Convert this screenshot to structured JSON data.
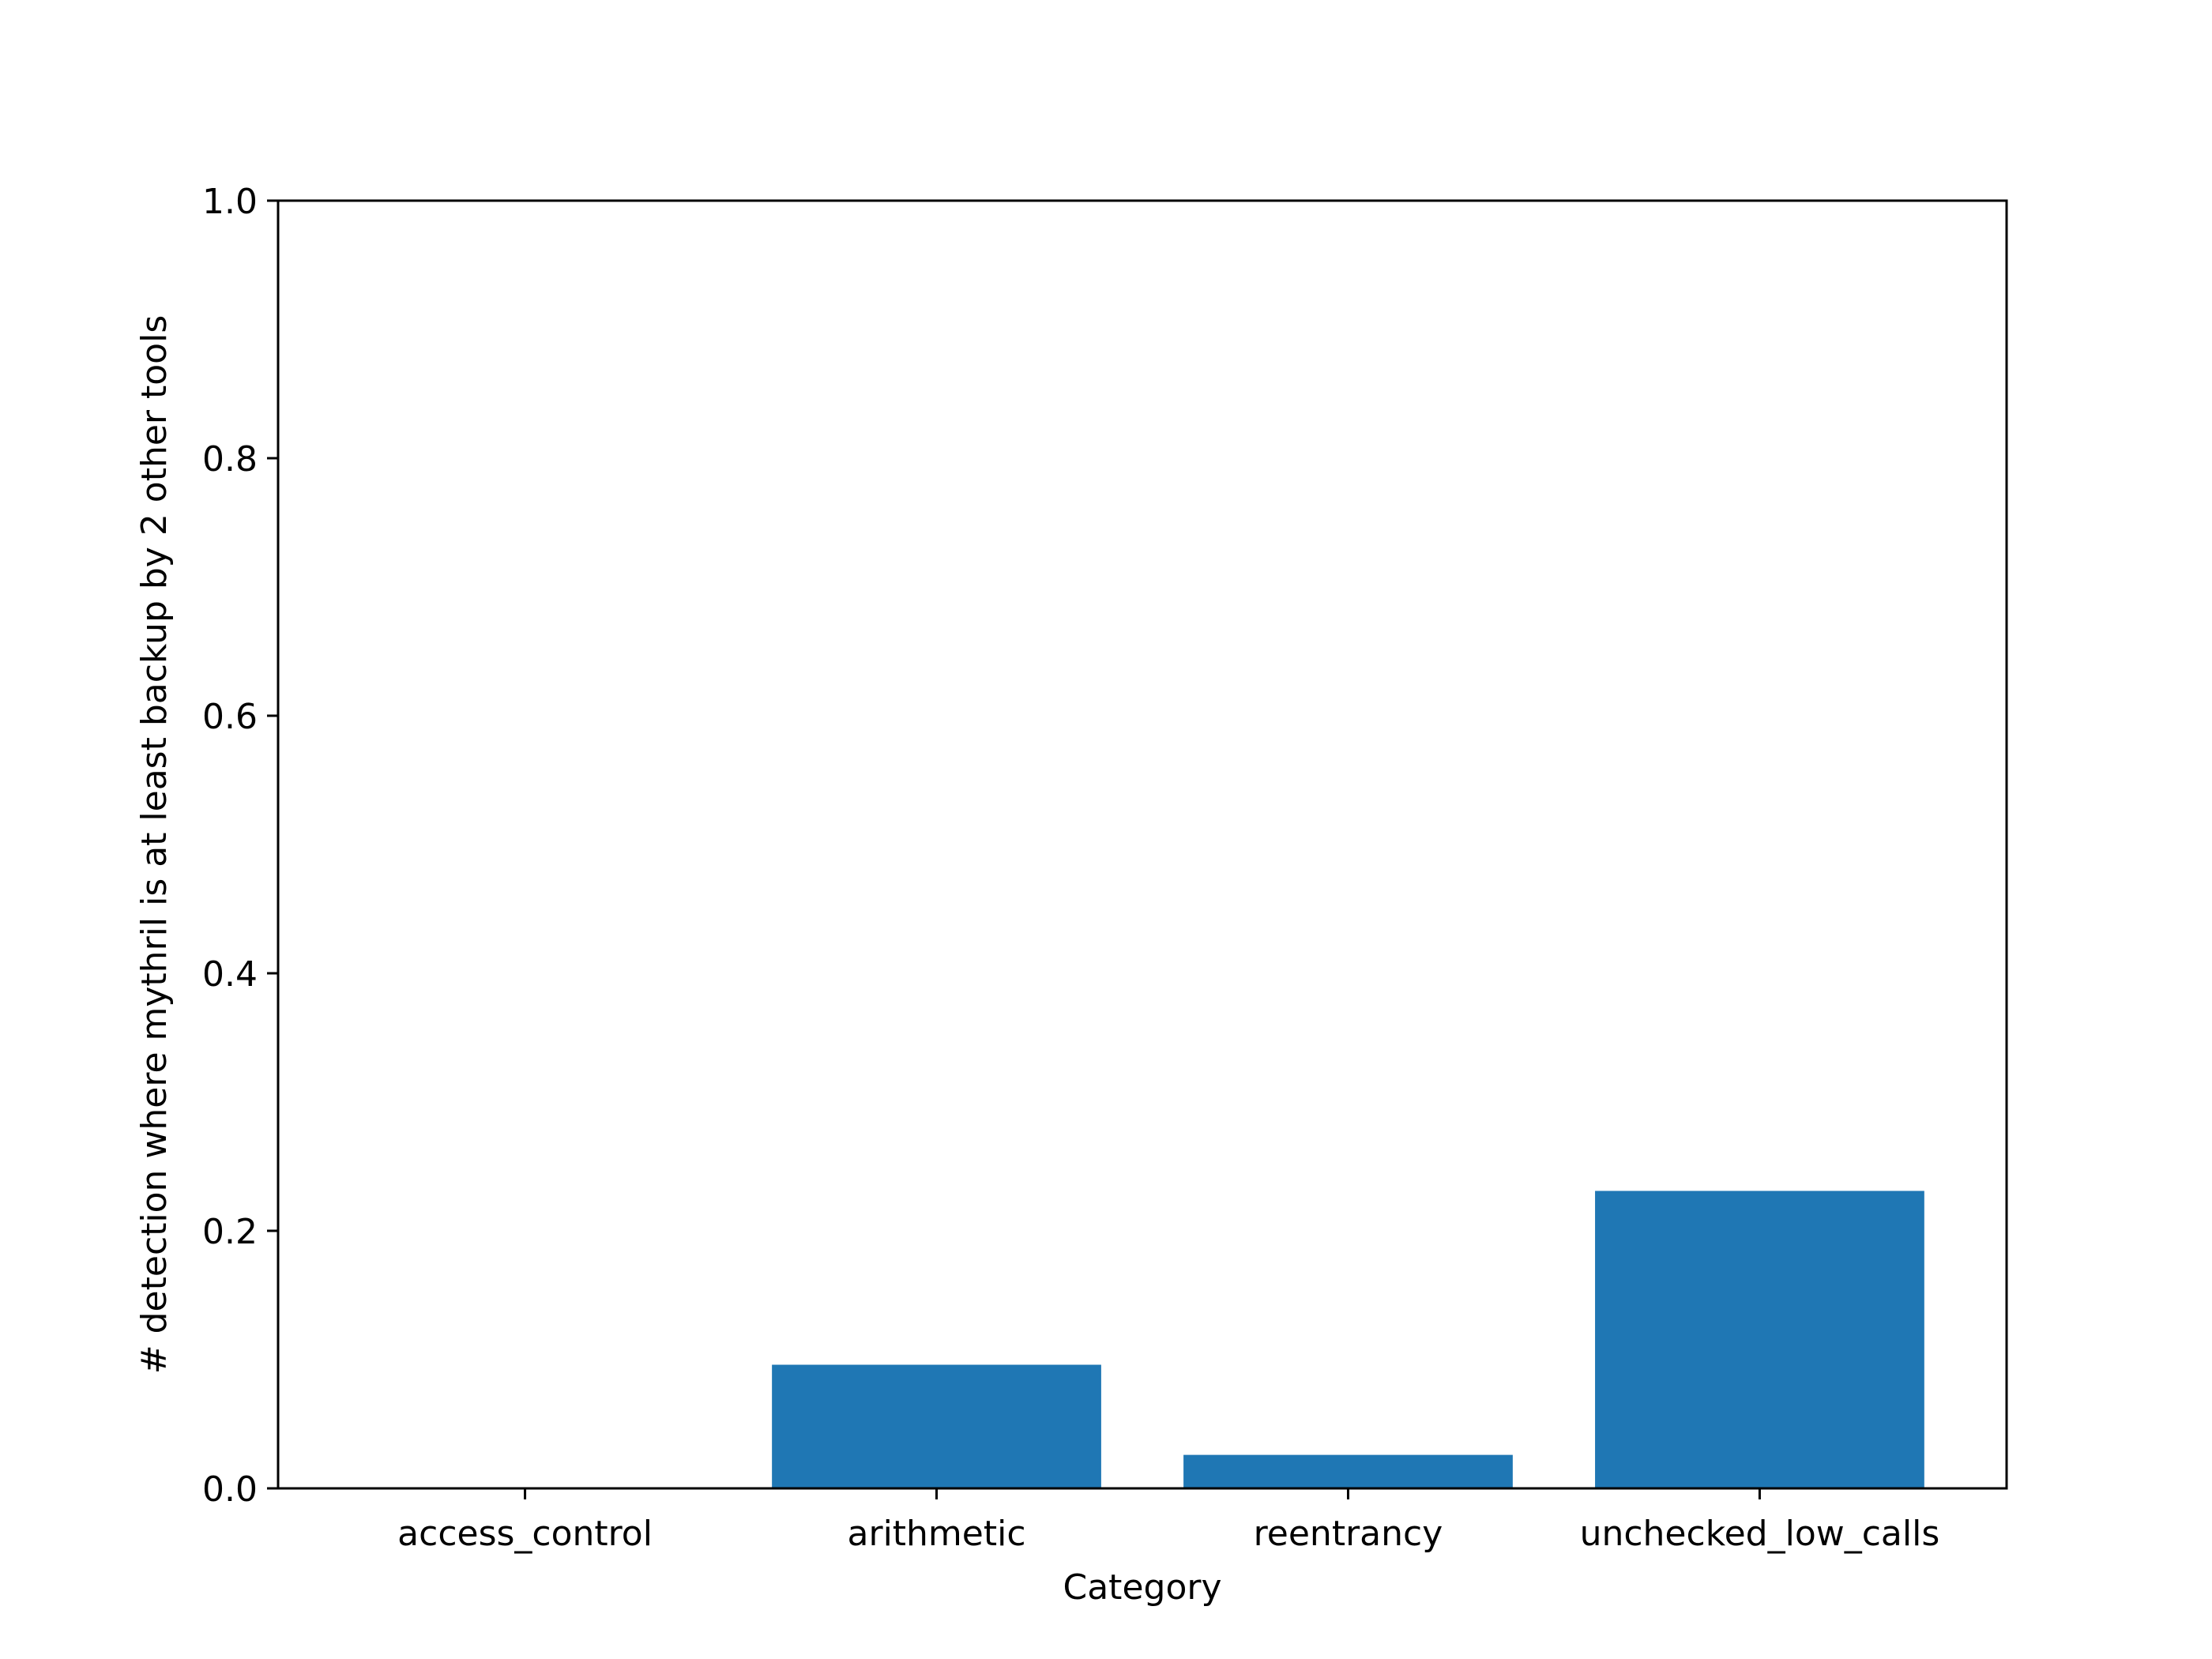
{
  "chart_data": {
    "type": "bar",
    "title": "",
    "xlabel": "Category",
    "ylabel": "# detection where mythril is at least backup by 2 other tools",
    "categories": [
      "access_control",
      "arithmetic",
      "reentrancy",
      "unchecked_low_calls"
    ],
    "values": [
      0.0,
      0.096,
      0.026,
      0.231
    ],
    "ylim": [
      0.0,
      1.0
    ],
    "yticks": [
      "0.0",
      "0.2",
      "0.4",
      "0.6",
      "0.8",
      "1.0"
    ],
    "grid": false,
    "bar_color": "#1f77b4"
  }
}
